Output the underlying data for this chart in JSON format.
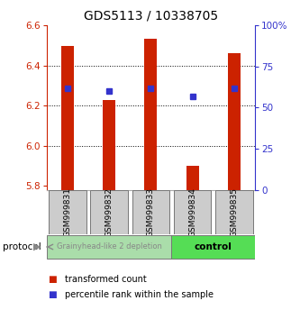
{
  "title": "GDS5113 / 10338705",
  "samples": [
    "GSM999831",
    "GSM999832",
    "GSM999833",
    "GSM999834",
    "GSM999835"
  ],
  "bar_values": [
    6.5,
    6.23,
    6.535,
    5.9,
    6.46
  ],
  "bar_base": 5.78,
  "percentile_values": [
    6.285,
    6.272,
    6.288,
    6.248,
    6.285
  ],
  "ylim": [
    5.78,
    6.6
  ],
  "y_ticks": [
    5.8,
    6.0,
    6.2,
    6.4,
    6.6
  ],
  "y2_ticks": [
    0,
    25,
    50,
    75,
    100
  ],
  "bar_color": "#cc2200",
  "percentile_color": "#3333cc",
  "groups": [
    {
      "label": "Grainyhead-like 2 depletion",
      "samples": [
        0,
        1,
        2
      ],
      "color": "#aaddaa",
      "text_color": "#888888"
    },
    {
      "label": "control",
      "samples": [
        3,
        4
      ],
      "color": "#55dd55",
      "text_color": "#000000"
    }
  ],
  "protocol_label": "protocol",
  "legend_items": [
    {
      "color": "#cc2200",
      "label": "transformed count"
    },
    {
      "color": "#3333cc",
      "label": "percentile rank within the sample"
    }
  ],
  "sample_box_color": "#cccccc",
  "title_fontsize": 10,
  "tick_fontsize": 7.5,
  "bar_width": 0.3
}
